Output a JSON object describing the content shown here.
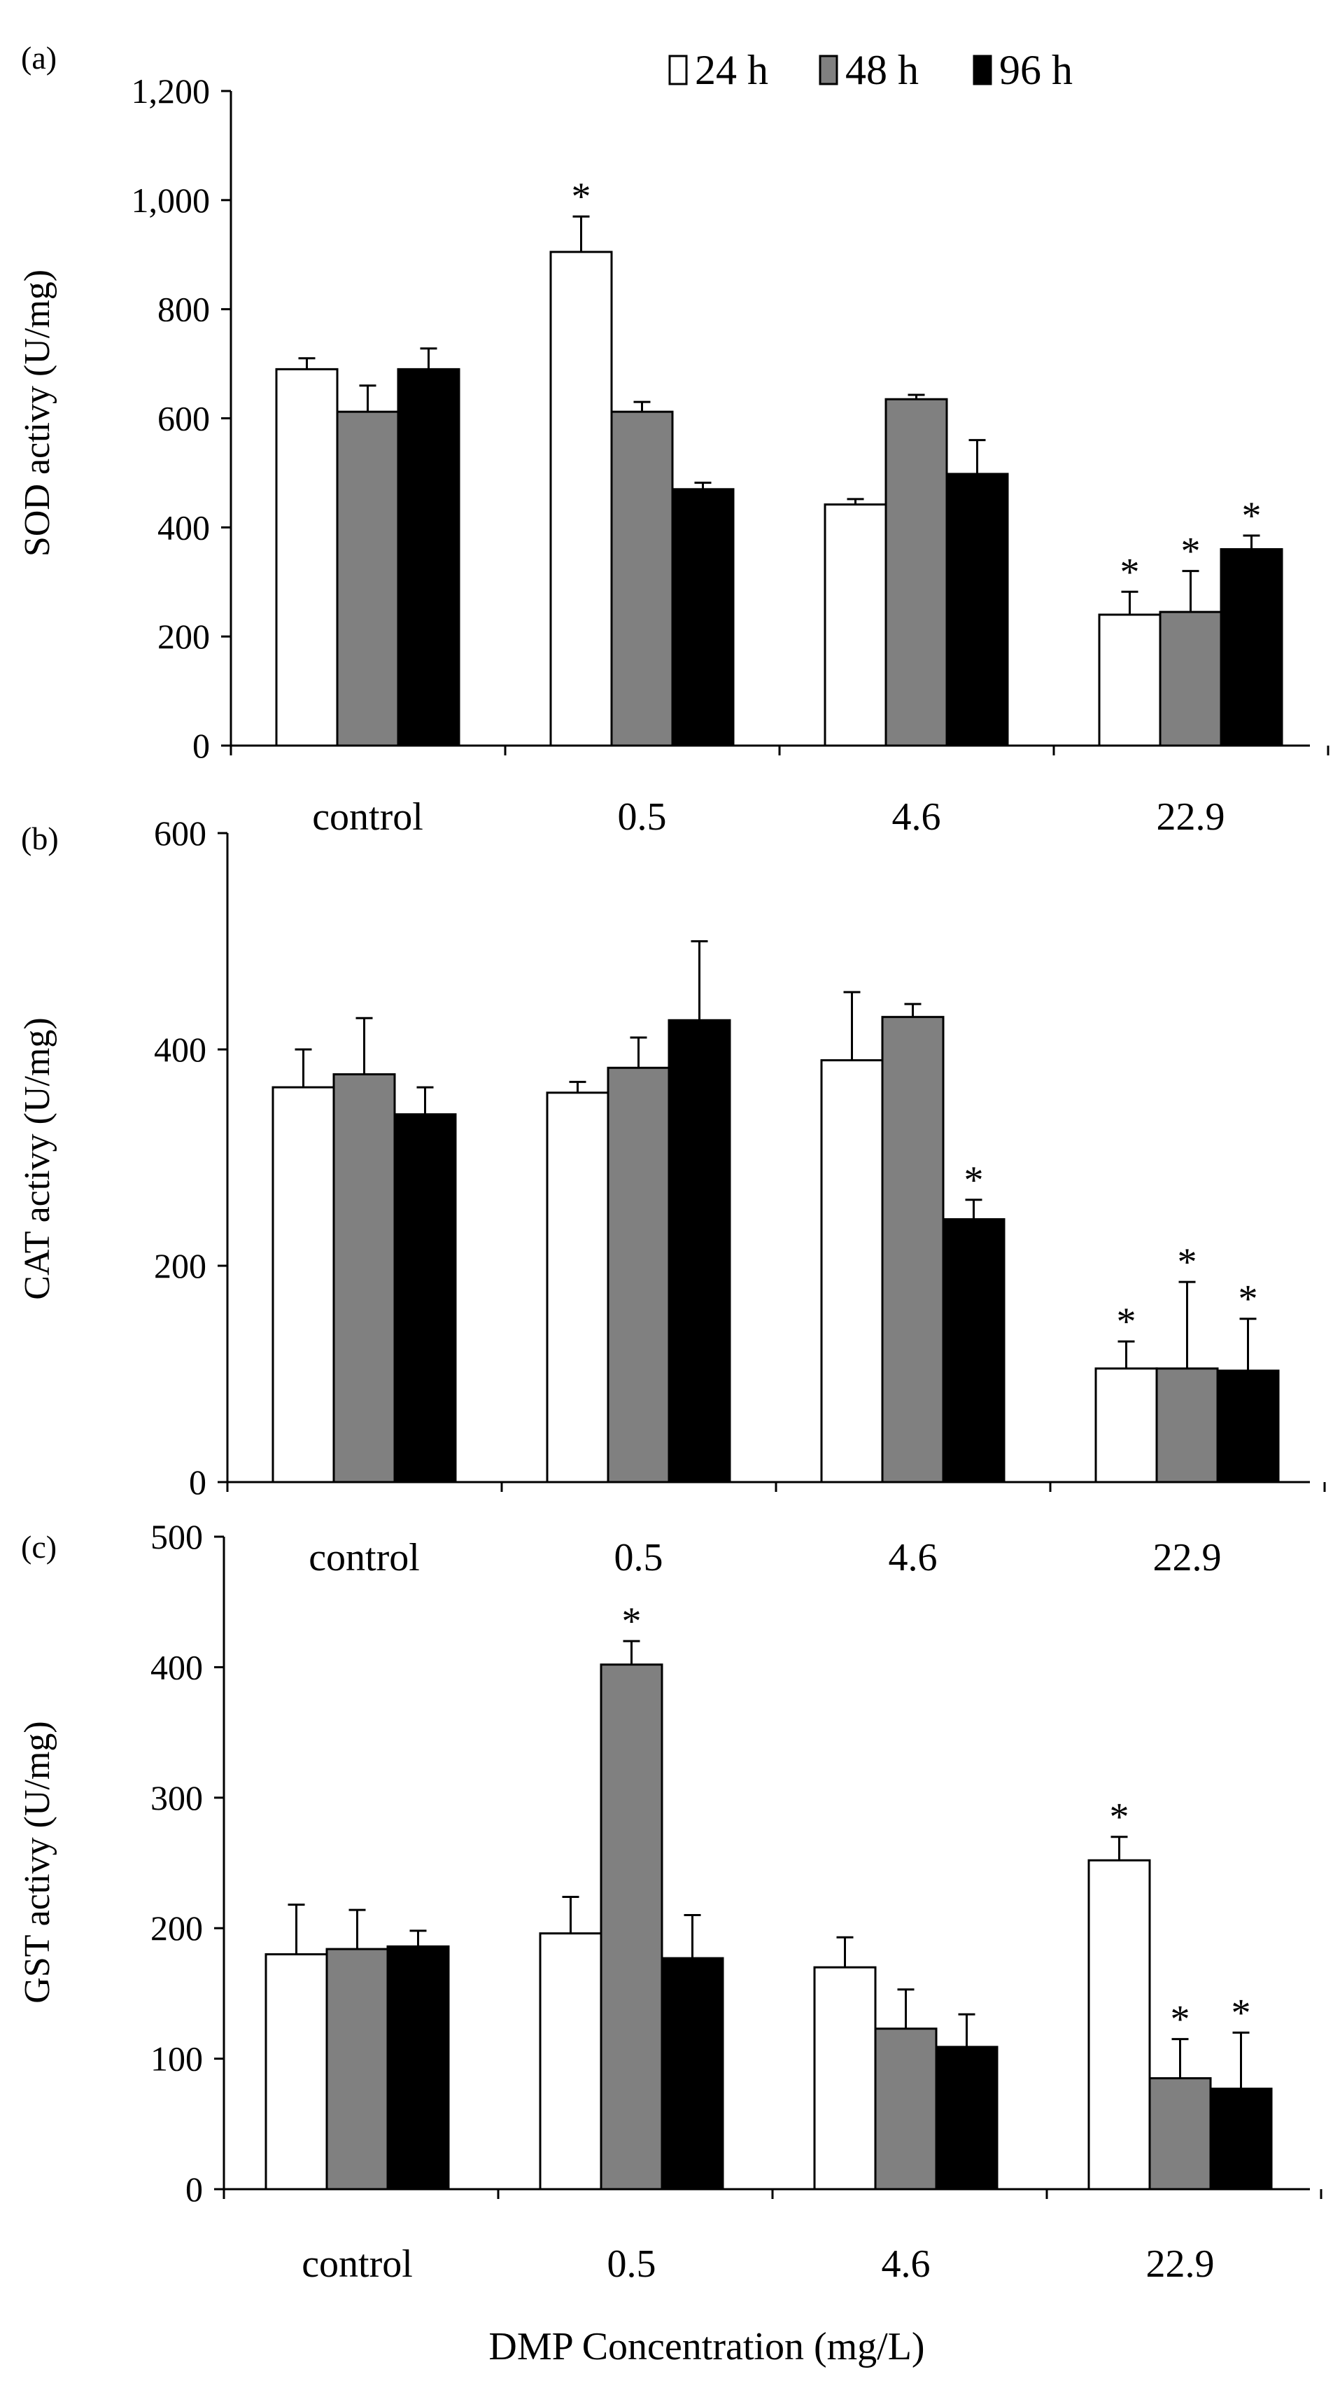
{
  "figure": {
    "xlabel": "DMP Concentration (mg/L)"
  },
  "legend": [
    {
      "label": "24 h",
      "color": "#ffffff"
    },
    {
      "label": "48 h",
      "color": "#808080"
    },
    {
      "label": "96 h",
      "color": "#000000"
    }
  ],
  "chart_data": [
    {
      "type": "bar",
      "panel_label": "(a)",
      "title": "",
      "xlabel": "",
      "ylabel": "SOD activy (U/mg)",
      "ylim": [
        0,
        1200
      ],
      "yticks": [
        0,
        200,
        400,
        600,
        800,
        1000,
        1200
      ],
      "ytick_labels": [
        "0",
        "200",
        "400",
        "600",
        "800",
        "1,000",
        "1,200"
      ],
      "categories": [
        "control",
        "0.5",
        "4.6",
        "22.9"
      ],
      "series": [
        {
          "name": "24 h",
          "color": "#ffffff",
          "values": [
            690,
            905,
            442,
            240
          ],
          "errors": [
            20,
            65,
            10,
            42
          ],
          "significant": [
            false,
            true,
            false,
            true
          ]
        },
        {
          "name": "48 h",
          "color": "#808080",
          "values": [
            612,
            612,
            635,
            245
          ],
          "errors": [
            48,
            18,
            8,
            75
          ],
          "significant": [
            false,
            false,
            false,
            true
          ]
        },
        {
          "name": "96 h",
          "color": "#000000",
          "values": [
            690,
            470,
            498,
            360
          ],
          "errors": [
            38,
            12,
            62,
            25
          ],
          "significant": [
            false,
            false,
            false,
            true
          ]
        }
      ]
    },
    {
      "type": "bar",
      "panel_label": "(b)",
      "title": "",
      "xlabel": "",
      "ylabel": "CAT activy (U/mg)",
      "ylim": [
        0,
        600
      ],
      "yticks": [
        0,
        200,
        400,
        600
      ],
      "ytick_labels": [
        "0",
        "200",
        "400",
        "600"
      ],
      "categories": [
        "control",
        "0.5",
        "4.6",
        "22.9"
      ],
      "series": [
        {
          "name": "24 h",
          "color": "#ffffff",
          "values": [
            365,
            360,
            390,
            105
          ],
          "errors": [
            35,
            10,
            63,
            25
          ],
          "significant": [
            false,
            false,
            false,
            true
          ]
        },
        {
          "name": "48 h",
          "color": "#808080",
          "values": [
            377,
            383,
            430,
            105
          ],
          "errors": [
            52,
            28,
            12,
            80
          ],
          "significant": [
            false,
            false,
            false,
            true
          ]
        },
        {
          "name": "96 h",
          "color": "#000000",
          "values": [
            340,
            427,
            243,
            103
          ],
          "errors": [
            25,
            73,
            18,
            48
          ],
          "significant": [
            false,
            false,
            true,
            true
          ]
        }
      ]
    },
    {
      "type": "bar",
      "panel_label": "(c)",
      "title": "",
      "xlabel": "DMP Concentration (mg/L)",
      "ylabel": "GST activy (U/mg)",
      "ylim": [
        0,
        500
      ],
      "yticks": [
        0,
        100,
        200,
        300,
        400,
        500
      ],
      "ytick_labels": [
        "0",
        "100",
        "200",
        "300",
        "400",
        "500"
      ],
      "categories": [
        "control",
        "0.5",
        "4.6",
        "22.9"
      ],
      "series": [
        {
          "name": "24 h",
          "color": "#ffffff",
          "values": [
            180,
            196,
            170,
            252
          ],
          "errors": [
            38,
            28,
            23,
            18
          ],
          "significant": [
            false,
            false,
            false,
            true
          ]
        },
        {
          "name": "48 h",
          "color": "#808080",
          "values": [
            184,
            402,
            123,
            85
          ],
          "errors": [
            30,
            18,
            30,
            30
          ],
          "significant": [
            false,
            true,
            false,
            true
          ]
        },
        {
          "name": "96 h",
          "color": "#000000",
          "values": [
            186,
            177,
            109,
            77
          ],
          "errors": [
            12,
            33,
            25,
            43
          ],
          "significant": [
            false,
            false,
            false,
            true
          ]
        }
      ]
    }
  ]
}
